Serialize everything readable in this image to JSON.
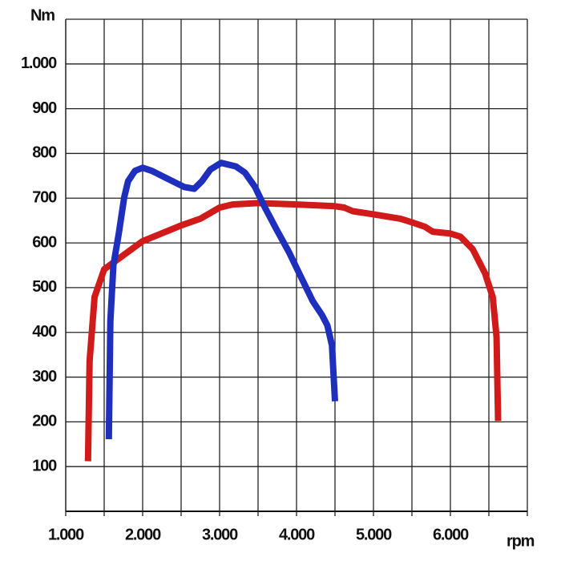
{
  "chart_data": {
    "type": "line",
    "ylabel": "Nm",
    "xlabel": "rpm",
    "xlim": [
      1000,
      7000
    ],
    "xticks": [
      {
        "value": 1000,
        "label": "1.000"
      },
      {
        "value": 2000,
        "label": "2.000"
      },
      {
        "value": 3000,
        "label": "3.000"
      },
      {
        "value": 4000,
        "label": "4.000"
      },
      {
        "value": 5000,
        "label": "5.000"
      },
      {
        "value": 6000,
        "label": "6.000"
      }
    ],
    "xgrid": [
      1500,
      2500,
      3500,
      4500,
      5500,
      6500,
      7000
    ],
    "ylim": [
      0,
      1100
    ],
    "yticks": [
      100,
      200,
      300,
      400,
      500,
      600,
      700,
      800,
      900,
      {
        "value": 1000,
        "label": "1.000"
      }
    ],
    "grid": true,
    "series": [
      {
        "color": "#d11a1a",
        "x": [
          1290,
          1310,
          1375,
          1500,
          2000,
          2500,
          2750,
          3000,
          3170,
          3500,
          4000,
          4500,
          4620,
          4730,
          5000,
          5350,
          5500,
          5670,
          5770,
          6000,
          6130,
          6290,
          6450,
          6550,
          6600,
          6620
        ],
        "values": [
          112,
          336,
          479,
          541,
          604,
          639,
          654,
          679,
          686,
          689,
          686,
          682,
          679,
          671,
          664,
          654,
          646,
          636,
          625,
          621,
          614,
          586,
          532,
          479,
          389,
          202
        ]
      },
      {
        "color": "#1f2fbd",
        "x": [
          1560,
          1580,
          1620,
          1690,
          1760,
          1810,
          1900,
          2000,
          2120,
          2330,
          2540,
          2670,
          2770,
          2880,
          3020,
          3210,
          3330,
          3460,
          3580,
          3740,
          3900,
          4060,
          4210,
          4330,
          4400,
          4460,
          4500
        ],
        "values": [
          161,
          425,
          550,
          621,
          702,
          738,
          761,
          768,
          761,
          743,
          725,
          721,
          738,
          764,
          779,
          771,
          757,
          725,
          682,
          630,
          580,
          523,
          470,
          439,
          416,
          371,
          246
        ]
      }
    ]
  }
}
